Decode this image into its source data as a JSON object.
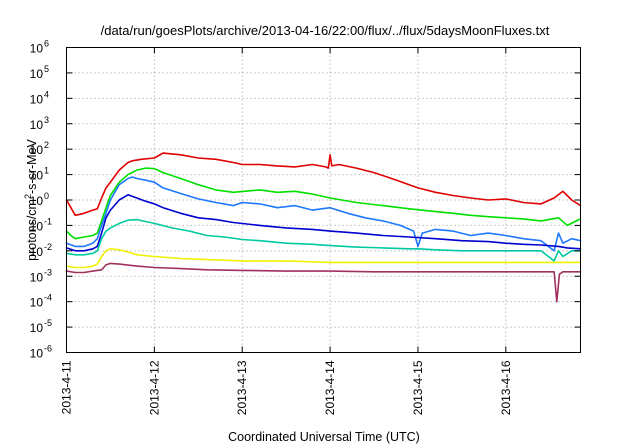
{
  "chart_data": {
    "type": "line",
    "title": "/data/run/goesPlots/archive/2013-04-16/22:00/flux/../flux/5daysMoonFluxes.txt",
    "xlabel": "Coordinated Universal Time (UTC)",
    "ylabel": {
      "base": "protons/cm",
      "sup": "2",
      "rest": "-s-sr-MeV"
    },
    "yscale": "log",
    "ylim": [
      1e-06,
      1000000.0
    ],
    "xlim": [
      0,
      5.85
    ],
    "x_unit": "days since 2013-04-11 00:00 UTC",
    "x_ticks": [
      {
        "x": 0,
        "label": "2013-4-11"
      },
      {
        "x": 1,
        "label": "2013-4-12"
      },
      {
        "x": 2,
        "label": "2013-4-13"
      },
      {
        "x": 3,
        "label": "2013-4-14"
      },
      {
        "x": 4,
        "label": "2013-4-15"
      },
      {
        "x": 5,
        "label": "2013-4-16"
      }
    ],
    "y_ticks": [
      {
        "exp": -6,
        "label_base": "10",
        "label_exp": "-6"
      },
      {
        "exp": -5,
        "label_base": "10",
        "label_exp": "-5"
      },
      {
        "exp": -4,
        "label_base": "10",
        "label_exp": "-4"
      },
      {
        "exp": -3,
        "label_base": "10",
        "label_exp": "-3"
      },
      {
        "exp": -2,
        "label_base": "10",
        "label_exp": "-2"
      },
      {
        "exp": -1,
        "label_base": "10",
        "label_exp": "-1"
      },
      {
        "exp": 0,
        "label_base": "10",
        "label_exp": "0"
      },
      {
        "exp": 1,
        "label_base": "10",
        "label_exp": "1"
      },
      {
        "exp": 2,
        "label_base": "10",
        "label_exp": "2"
      },
      {
        "exp": 3,
        "label_base": "10",
        "label_exp": "3"
      },
      {
        "exp": 4,
        "label_base": "10",
        "label_exp": "4"
      },
      {
        "exp": 5,
        "label_base": "10",
        "label_exp": "5"
      },
      {
        "exp": 6,
        "label_base": "10",
        "label_exp": "6"
      }
    ],
    "grid": true,
    "legend": "none",
    "series": [
      {
        "color": "#e00000",
        "x": [
          0,
          0.05,
          0.1,
          0.2,
          0.3,
          0.35,
          0.4,
          0.45,
          0.5,
          0.6,
          0.7,
          0.75,
          0.85,
          1.0,
          1.1,
          1.3,
          1.5,
          1.7,
          1.9,
          2.0,
          2.2,
          2.4,
          2.6,
          2.8,
          2.95,
          2.98,
          3.0,
          3.02,
          3.1,
          3.3,
          3.5,
          3.7,
          3.9,
          4.0,
          4.2,
          4.4,
          4.6,
          4.8,
          5.0,
          5.2,
          5.4,
          5.55,
          5.65,
          5.75,
          5.85
        ],
        "y": [
          1.0,
          0.5,
          0.25,
          0.3,
          0.4,
          0.45,
          1.2,
          3,
          5,
          15,
          30,
          35,
          40,
          45,
          70,
          60,
          45,
          40,
          30,
          25,
          25,
          22,
          20,
          25,
          20,
          18,
          60,
          22,
          25,
          18,
          12,
          7,
          4,
          3,
          2,
          1.5,
          1.2,
          1,
          1.1,
          0.8,
          0.7,
          1.2,
          2.2,
          1.0,
          0.6
        ]
      },
      {
        "color": "#00e000",
        "x": [
          0,
          0.05,
          0.1,
          0.2,
          0.3,
          0.35,
          0.4,
          0.45,
          0.5,
          0.6,
          0.7,
          0.8,
          0.9,
          1.0,
          1.1,
          1.3,
          1.5,
          1.7,
          1.9,
          2.2,
          2.4,
          2.6,
          2.8,
          3.0,
          3.3,
          3.6,
          3.9,
          4.2,
          4.4,
          4.6,
          4.8,
          5.0,
          5.2,
          5.4,
          5.6,
          5.7,
          5.85
        ],
        "y": [
          0.06,
          0.04,
          0.03,
          0.035,
          0.04,
          0.05,
          0.15,
          0.5,
          1.5,
          5,
          10,
          15,
          18,
          17,
          12,
          7,
          4,
          2.5,
          2,
          2.5,
          2,
          2.2,
          1.7,
          1.2,
          0.8,
          0.6,
          0.45,
          0.35,
          0.3,
          0.25,
          0.22,
          0.2,
          0.18,
          0.15,
          0.2,
          0.1,
          0.18
        ]
      },
      {
        "color": "#1e78ff",
        "x": [
          0,
          0.1,
          0.2,
          0.3,
          0.35,
          0.4,
          0.45,
          0.5,
          0.6,
          0.7,
          0.75,
          0.8,
          0.9,
          1.0,
          1.1,
          1.3,
          1.5,
          1.7,
          1.9,
          2.0,
          2.2,
          2.4,
          2.6,
          2.8,
          3.0,
          3.2,
          3.4,
          3.6,
          3.8,
          3.95,
          4.0,
          4.05,
          4.2,
          4.4,
          4.6,
          4.8,
          5.0,
          5.2,
          5.4,
          5.55,
          5.6,
          5.65,
          5.75,
          5.85
        ],
        "y": [
          0.02,
          0.015,
          0.015,
          0.02,
          0.03,
          0.1,
          0.3,
          1.0,
          4,
          7,
          8,
          7,
          6,
          5,
          3,
          1.8,
          1.1,
          0.8,
          0.6,
          0.8,
          0.7,
          0.5,
          0.6,
          0.4,
          0.5,
          0.3,
          0.2,
          0.15,
          0.1,
          0.06,
          0.015,
          0.05,
          0.07,
          0.06,
          0.04,
          0.05,
          0.04,
          0.03,
          0.025,
          0.01,
          0.05,
          0.02,
          0.03,
          0.025
        ]
      },
      {
        "color": "#0000d0",
        "x": [
          0,
          0.1,
          0.2,
          0.3,
          0.35,
          0.4,
          0.45,
          0.5,
          0.6,
          0.7,
          0.8,
          0.9,
          1.0,
          1.1,
          1.3,
          1.5,
          1.7,
          1.9,
          2.2,
          2.5,
          2.8,
          3.0,
          3.3,
          3.6,
          3.9,
          4.2,
          4.5,
          4.8,
          5.0,
          5.2,
          5.4,
          5.6,
          5.7,
          5.85
        ],
        "y": [
          0.013,
          0.01,
          0.01,
          0.012,
          0.015,
          0.05,
          0.2,
          0.4,
          1.0,
          1.6,
          1.2,
          0.9,
          0.7,
          0.5,
          0.3,
          0.2,
          0.17,
          0.13,
          0.1,
          0.08,
          0.07,
          0.06,
          0.05,
          0.04,
          0.035,
          0.03,
          0.025,
          0.023,
          0.02,
          0.018,
          0.017,
          0.015,
          0.013,
          0.012
        ]
      },
      {
        "color": "#00c8a0",
        "x": [
          0,
          0.1,
          0.2,
          0.3,
          0.35,
          0.4,
          0.45,
          0.5,
          0.6,
          0.7,
          0.8,
          1.0,
          1.2,
          1.4,
          1.6,
          1.8,
          2.0,
          2.2,
          2.5,
          2.8,
          3.0,
          3.3,
          3.6,
          3.9,
          4.0,
          4.2,
          4.5,
          4.8,
          5.0,
          5.2,
          5.4,
          5.55,
          5.6,
          5.65,
          5.75,
          5.85
        ],
        "y": [
          0.008,
          0.007,
          0.007,
          0.008,
          0.01,
          0.03,
          0.06,
          0.08,
          0.12,
          0.16,
          0.17,
          0.12,
          0.08,
          0.06,
          0.04,
          0.035,
          0.028,
          0.025,
          0.02,
          0.018,
          0.016,
          0.014,
          0.013,
          0.012,
          0.012,
          0.011,
          0.01,
          0.01,
          0.01,
          0.01,
          0.01,
          0.004,
          0.01,
          0.006,
          0.01,
          0.01
        ]
      },
      {
        "color": "#f0f000",
        "x": [
          0,
          0.1,
          0.2,
          0.3,
          0.35,
          0.4,
          0.45,
          0.5,
          0.6,
          0.7,
          0.8,
          1.0,
          1.3,
          1.6,
          2.0,
          2.5,
          3.0,
          3.5,
          4.0,
          4.5,
          5.0,
          5.5,
          5.85
        ],
        "y": [
          0.0025,
          0.0022,
          0.0022,
          0.0025,
          0.003,
          0.006,
          0.01,
          0.012,
          0.011,
          0.009,
          0.007,
          0.006,
          0.005,
          0.0045,
          0.004,
          0.004,
          0.0035,
          0.0035,
          0.0035,
          0.0035,
          0.0035,
          0.0035,
          0.0035
        ]
      },
      {
        "color": "#a03060",
        "x": [
          0,
          0.1,
          0.2,
          0.3,
          0.4,
          0.45,
          0.5,
          0.6,
          0.8,
          1.0,
          1.3,
          1.6,
          2.0,
          2.5,
          3.0,
          3.5,
          4.0,
          4.5,
          5.0,
          5.4,
          5.55,
          5.58,
          5.61,
          5.65,
          5.75,
          5.85
        ],
        "y": [
          0.0016,
          0.0014,
          0.0014,
          0.0016,
          0.0018,
          0.0028,
          0.0032,
          0.003,
          0.0025,
          0.0022,
          0.002,
          0.0018,
          0.0017,
          0.0016,
          0.0016,
          0.0015,
          0.0015,
          0.0015,
          0.0015,
          0.0015,
          0.0015,
          0.0001,
          0.0012,
          0.0015,
          0.0015,
          0.0015
        ]
      }
    ]
  }
}
